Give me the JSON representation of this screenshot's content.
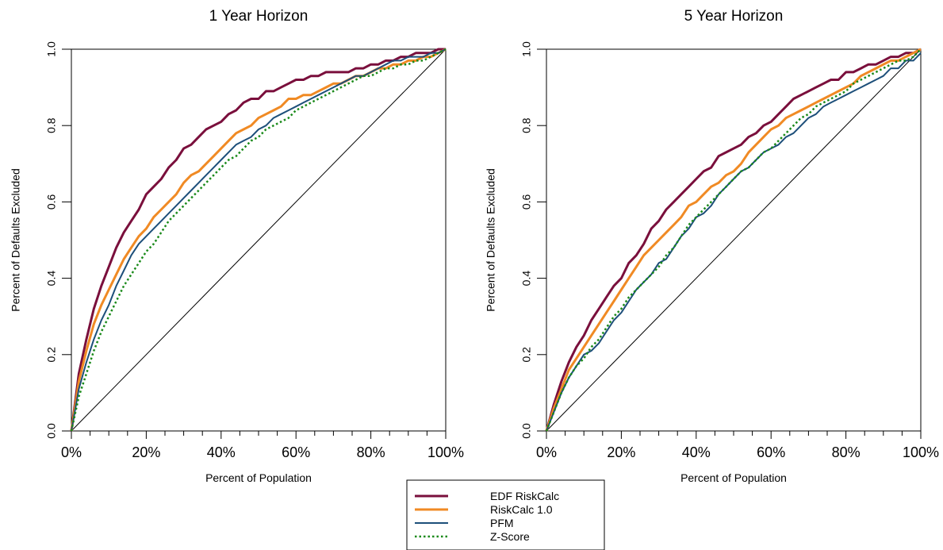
{
  "colors": {
    "edf": "#7a0f3c",
    "riskcalc": "#f08a24",
    "pfm": "#1d4f7a",
    "zscore": "#1a8a1a",
    "diagonal": "#000000"
  },
  "legend": {
    "entries": [
      "EDF RiskCalc",
      "RiskCalc 1.0",
      "PFM",
      "Z-Score"
    ]
  },
  "chart_data": [
    {
      "type": "line",
      "title": "1 Year Horizon",
      "xlabel": "Percent of Population",
      "ylabel": "Percent of Defaults Excluded",
      "xlim": [
        0,
        1
      ],
      "ylim": [
        0,
        1
      ],
      "x_ticks": [
        "0%",
        "20%",
        "40%",
        "60%",
        "80%",
        "100%"
      ],
      "y_ticks": [
        "0.0",
        "0.2",
        "0.4",
        "0.6",
        "0.8",
        "1.0"
      ],
      "grid": false,
      "diagonal": true,
      "series": [
        {
          "name": "EDF RiskCalc",
          "color_key": "edf",
          "dash": false,
          "width": 3,
          "x": [
            0,
            0.02,
            0.04,
            0.06,
            0.08,
            0.1,
            0.12,
            0.14,
            0.16,
            0.18,
            0.2,
            0.22,
            0.24,
            0.26,
            0.28,
            0.3,
            0.32,
            0.34,
            0.36,
            0.38,
            0.4,
            0.42,
            0.44,
            0.46,
            0.48,
            0.5,
            0.52,
            0.54,
            0.56,
            0.58,
            0.6,
            0.62,
            0.64,
            0.66,
            0.68,
            0.7,
            0.72,
            0.74,
            0.76,
            0.78,
            0.8,
            0.82,
            0.84,
            0.86,
            0.88,
            0.9,
            0.92,
            0.94,
            0.96,
            0.98,
            1.0
          ],
          "y": [
            0,
            0.15,
            0.24,
            0.32,
            0.38,
            0.43,
            0.48,
            0.52,
            0.55,
            0.58,
            0.62,
            0.64,
            0.66,
            0.69,
            0.71,
            0.74,
            0.75,
            0.77,
            0.79,
            0.8,
            0.81,
            0.83,
            0.84,
            0.86,
            0.87,
            0.87,
            0.89,
            0.89,
            0.9,
            0.91,
            0.92,
            0.92,
            0.93,
            0.93,
            0.94,
            0.94,
            0.94,
            0.94,
            0.95,
            0.95,
            0.96,
            0.96,
            0.97,
            0.97,
            0.98,
            0.98,
            0.99,
            0.99,
            0.99,
            1.0,
            1.0
          ]
        },
        {
          "name": "RiskCalc 1.0",
          "color_key": "riskcalc",
          "dash": false,
          "width": 3,
          "x": [
            0,
            0.02,
            0.04,
            0.06,
            0.08,
            0.1,
            0.12,
            0.14,
            0.16,
            0.18,
            0.2,
            0.22,
            0.24,
            0.26,
            0.28,
            0.3,
            0.32,
            0.34,
            0.36,
            0.38,
            0.4,
            0.42,
            0.44,
            0.46,
            0.48,
            0.5,
            0.52,
            0.54,
            0.56,
            0.58,
            0.6,
            0.62,
            0.64,
            0.66,
            0.68,
            0.7,
            0.72,
            0.74,
            0.76,
            0.78,
            0.8,
            0.82,
            0.84,
            0.86,
            0.88,
            0.9,
            0.92,
            0.94,
            0.96,
            0.98,
            1.0
          ],
          "y": [
            0,
            0.13,
            0.21,
            0.28,
            0.33,
            0.37,
            0.41,
            0.45,
            0.48,
            0.51,
            0.53,
            0.56,
            0.58,
            0.6,
            0.62,
            0.65,
            0.67,
            0.68,
            0.7,
            0.72,
            0.74,
            0.76,
            0.78,
            0.79,
            0.8,
            0.82,
            0.83,
            0.84,
            0.85,
            0.87,
            0.87,
            0.88,
            0.88,
            0.89,
            0.9,
            0.91,
            0.91,
            0.92,
            0.93,
            0.93,
            0.94,
            0.95,
            0.95,
            0.96,
            0.96,
            0.97,
            0.97,
            0.98,
            0.98,
            0.99,
            1.0
          ]
        },
        {
          "name": "PFM",
          "color_key": "pfm",
          "dash": false,
          "width": 2,
          "x": [
            0,
            0.02,
            0.04,
            0.06,
            0.08,
            0.1,
            0.12,
            0.14,
            0.16,
            0.18,
            0.2,
            0.22,
            0.24,
            0.26,
            0.28,
            0.3,
            0.32,
            0.34,
            0.36,
            0.38,
            0.4,
            0.42,
            0.44,
            0.46,
            0.48,
            0.5,
            0.52,
            0.54,
            0.56,
            0.58,
            0.6,
            0.62,
            0.64,
            0.66,
            0.68,
            0.7,
            0.72,
            0.74,
            0.76,
            0.78,
            0.8,
            0.82,
            0.84,
            0.86,
            0.88,
            0.9,
            0.92,
            0.94,
            0.96,
            0.98,
            1.0
          ],
          "y": [
            0,
            0.11,
            0.18,
            0.24,
            0.29,
            0.33,
            0.38,
            0.42,
            0.46,
            0.49,
            0.51,
            0.53,
            0.55,
            0.57,
            0.59,
            0.61,
            0.63,
            0.65,
            0.67,
            0.69,
            0.71,
            0.73,
            0.75,
            0.76,
            0.77,
            0.79,
            0.8,
            0.82,
            0.83,
            0.84,
            0.85,
            0.86,
            0.87,
            0.88,
            0.89,
            0.9,
            0.91,
            0.92,
            0.93,
            0.93,
            0.94,
            0.95,
            0.96,
            0.97,
            0.97,
            0.98,
            0.98,
            0.98,
            0.99,
            0.99,
            1.0
          ]
        },
        {
          "name": "Z-Score",
          "color_key": "zscore",
          "dash": true,
          "width": 2.5,
          "x": [
            0,
            0.02,
            0.04,
            0.06,
            0.08,
            0.1,
            0.12,
            0.14,
            0.16,
            0.18,
            0.2,
            0.22,
            0.24,
            0.26,
            0.28,
            0.3,
            0.32,
            0.34,
            0.36,
            0.38,
            0.4,
            0.42,
            0.44,
            0.46,
            0.48,
            0.5,
            0.52,
            0.54,
            0.56,
            0.58,
            0.6,
            0.62,
            0.64,
            0.66,
            0.68,
            0.7,
            0.72,
            0.74,
            0.76,
            0.78,
            0.8,
            0.82,
            0.84,
            0.86,
            0.88,
            0.9,
            0.92,
            0.94,
            0.96,
            0.98,
            1.0
          ],
          "y": [
            0,
            0.09,
            0.15,
            0.21,
            0.26,
            0.3,
            0.34,
            0.38,
            0.41,
            0.44,
            0.47,
            0.49,
            0.52,
            0.55,
            0.57,
            0.59,
            0.61,
            0.63,
            0.65,
            0.67,
            0.69,
            0.71,
            0.72,
            0.74,
            0.76,
            0.77,
            0.79,
            0.8,
            0.81,
            0.82,
            0.84,
            0.85,
            0.86,
            0.87,
            0.88,
            0.89,
            0.9,
            0.91,
            0.92,
            0.93,
            0.93,
            0.94,
            0.95,
            0.95,
            0.96,
            0.96,
            0.97,
            0.97,
            0.98,
            0.99,
            1.0
          ]
        }
      ]
    },
    {
      "type": "line",
      "title": "5 Year Horizon",
      "xlabel": "Percent of Population",
      "ylabel": "Percent of Defaults Excluded",
      "xlim": [
        0,
        1
      ],
      "ylim": [
        0,
        1
      ],
      "x_ticks": [
        "0%",
        "20%",
        "40%",
        "60%",
        "80%",
        "100%"
      ],
      "y_ticks": [
        "0.0",
        "0.2",
        "0.4",
        "0.6",
        "0.8",
        "1.0"
      ],
      "grid": false,
      "diagonal": true,
      "series": [
        {
          "name": "EDF RiskCalc",
          "color_key": "edf",
          "dash": false,
          "width": 3,
          "x": [
            0,
            0.02,
            0.04,
            0.06,
            0.08,
            0.1,
            0.12,
            0.14,
            0.16,
            0.18,
            0.2,
            0.22,
            0.24,
            0.26,
            0.28,
            0.3,
            0.32,
            0.34,
            0.36,
            0.38,
            0.4,
            0.42,
            0.44,
            0.46,
            0.48,
            0.5,
            0.52,
            0.54,
            0.56,
            0.58,
            0.6,
            0.62,
            0.64,
            0.66,
            0.68,
            0.7,
            0.72,
            0.74,
            0.76,
            0.78,
            0.8,
            0.82,
            0.84,
            0.86,
            0.88,
            0.9,
            0.92,
            0.94,
            0.96,
            0.98,
            1.0
          ],
          "y": [
            0,
            0.07,
            0.13,
            0.18,
            0.22,
            0.25,
            0.29,
            0.32,
            0.35,
            0.38,
            0.4,
            0.44,
            0.46,
            0.49,
            0.53,
            0.55,
            0.58,
            0.6,
            0.62,
            0.64,
            0.66,
            0.68,
            0.69,
            0.72,
            0.73,
            0.74,
            0.75,
            0.77,
            0.78,
            0.8,
            0.81,
            0.83,
            0.85,
            0.87,
            0.88,
            0.89,
            0.9,
            0.91,
            0.92,
            0.92,
            0.94,
            0.94,
            0.95,
            0.96,
            0.96,
            0.97,
            0.98,
            0.98,
            0.99,
            0.99,
            1.0
          ]
        },
        {
          "name": "RiskCalc 1.0",
          "color_key": "riskcalc",
          "dash": false,
          "width": 3,
          "x": [
            0,
            0.02,
            0.04,
            0.06,
            0.08,
            0.1,
            0.12,
            0.14,
            0.16,
            0.18,
            0.2,
            0.22,
            0.24,
            0.26,
            0.28,
            0.3,
            0.32,
            0.34,
            0.36,
            0.38,
            0.4,
            0.42,
            0.44,
            0.46,
            0.48,
            0.5,
            0.52,
            0.54,
            0.56,
            0.58,
            0.6,
            0.62,
            0.64,
            0.66,
            0.68,
            0.7,
            0.72,
            0.74,
            0.76,
            0.78,
            0.8,
            0.82,
            0.84,
            0.86,
            0.88,
            0.9,
            0.92,
            0.94,
            0.96,
            0.98,
            1.0
          ],
          "y": [
            0,
            0.06,
            0.11,
            0.16,
            0.19,
            0.22,
            0.25,
            0.28,
            0.31,
            0.34,
            0.37,
            0.4,
            0.43,
            0.46,
            0.48,
            0.5,
            0.52,
            0.54,
            0.56,
            0.59,
            0.6,
            0.62,
            0.64,
            0.65,
            0.67,
            0.68,
            0.7,
            0.73,
            0.75,
            0.77,
            0.79,
            0.8,
            0.82,
            0.83,
            0.84,
            0.85,
            0.86,
            0.87,
            0.88,
            0.89,
            0.9,
            0.91,
            0.93,
            0.94,
            0.95,
            0.96,
            0.97,
            0.97,
            0.98,
            0.99,
            1.0
          ]
        },
        {
          "name": "PFM",
          "color_key": "pfm",
          "dash": false,
          "width": 2,
          "x": [
            0,
            0.02,
            0.04,
            0.06,
            0.08,
            0.1,
            0.12,
            0.14,
            0.16,
            0.18,
            0.2,
            0.22,
            0.24,
            0.26,
            0.28,
            0.3,
            0.32,
            0.34,
            0.36,
            0.38,
            0.4,
            0.42,
            0.44,
            0.46,
            0.48,
            0.5,
            0.52,
            0.54,
            0.56,
            0.58,
            0.6,
            0.62,
            0.64,
            0.66,
            0.68,
            0.7,
            0.72,
            0.74,
            0.76,
            0.78,
            0.8,
            0.82,
            0.84,
            0.86,
            0.88,
            0.9,
            0.92,
            0.94,
            0.96,
            0.98,
            1.0
          ],
          "y": [
            0,
            0.05,
            0.1,
            0.14,
            0.17,
            0.2,
            0.21,
            0.23,
            0.26,
            0.29,
            0.31,
            0.34,
            0.37,
            0.39,
            0.41,
            0.44,
            0.45,
            0.48,
            0.51,
            0.53,
            0.56,
            0.57,
            0.59,
            0.62,
            0.64,
            0.66,
            0.68,
            0.69,
            0.71,
            0.73,
            0.74,
            0.75,
            0.77,
            0.78,
            0.8,
            0.82,
            0.83,
            0.85,
            0.86,
            0.87,
            0.88,
            0.89,
            0.9,
            0.91,
            0.92,
            0.93,
            0.95,
            0.95,
            0.97,
            0.97,
            0.99
          ]
        },
        {
          "name": "Z-Score",
          "color_key": "zscore",
          "dash": true,
          "width": 2.5,
          "x": [
            0,
            0.02,
            0.04,
            0.06,
            0.08,
            0.1,
            0.12,
            0.14,
            0.16,
            0.18,
            0.2,
            0.22,
            0.24,
            0.26,
            0.28,
            0.3,
            0.32,
            0.34,
            0.36,
            0.38,
            0.4,
            0.42,
            0.44,
            0.46,
            0.48,
            0.5,
            0.52,
            0.54,
            0.56,
            0.58,
            0.6,
            0.62,
            0.64,
            0.66,
            0.68,
            0.7,
            0.72,
            0.74,
            0.76,
            0.78,
            0.8,
            0.82,
            0.84,
            0.86,
            0.88,
            0.9,
            0.92,
            0.94,
            0.96,
            0.98,
            1.0
          ],
          "y": [
            0,
            0.05,
            0.1,
            0.14,
            0.17,
            0.19,
            0.22,
            0.24,
            0.27,
            0.3,
            0.32,
            0.35,
            0.37,
            0.39,
            0.41,
            0.43,
            0.46,
            0.48,
            0.51,
            0.54,
            0.56,
            0.58,
            0.6,
            0.62,
            0.64,
            0.66,
            0.68,
            0.69,
            0.71,
            0.73,
            0.74,
            0.76,
            0.78,
            0.8,
            0.82,
            0.83,
            0.85,
            0.86,
            0.87,
            0.88,
            0.89,
            0.91,
            0.92,
            0.93,
            0.94,
            0.95,
            0.96,
            0.97,
            0.97,
            0.98,
            1.0
          ]
        }
      ]
    }
  ]
}
